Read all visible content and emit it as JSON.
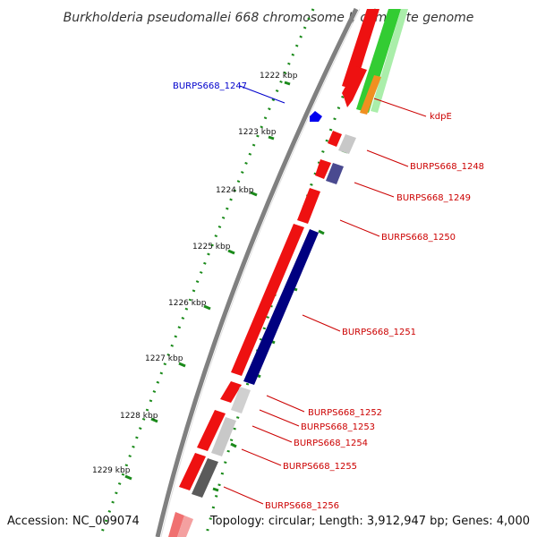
{
  "title": "Burkholderia pseudomallei 668 chromosome I, complete genome",
  "accession": "Accession: NC_009074",
  "topology": "Topology: circular; Length: 3,912,947 bp; Genes: 4,000",
  "colors": {
    "feature_red": "#ee1111",
    "label_red": "#cc0000",
    "label_blue": "#0000cc",
    "navy": "#000080",
    "slate": "#4a4a90",
    "light_gray": "#c8c8c8",
    "dark_gray": "#5a5a5a",
    "green": "#33cc33",
    "orange": "#f09020",
    "tick_green": "#1a8a1a",
    "backbone": "#808080"
  },
  "ticks": [
    {
      "label": "1222 kbp"
    },
    {
      "label": "1223 kbp"
    },
    {
      "label": "1224 kbp"
    },
    {
      "label": "1225 kbp"
    },
    {
      "label": "1226 kbp"
    },
    {
      "label": "1227 kbp"
    },
    {
      "label": "1228 kbp"
    },
    {
      "label": "1229 kbp"
    }
  ],
  "gene_labels": [
    {
      "text": "BURPS668_1247",
      "color": "blue"
    },
    {
      "text": "kdpE",
      "color": "red"
    },
    {
      "text": "BURPS668_1248",
      "color": "red"
    },
    {
      "text": "BURPS668_1249",
      "color": "red"
    },
    {
      "text": "BURPS668_1250",
      "color": "red"
    },
    {
      "text": "BURPS668_1251",
      "color": "red"
    },
    {
      "text": "BURPS668_1252",
      "color": "red"
    },
    {
      "text": "BURPS668_1253",
      "color": "red"
    },
    {
      "text": "BURPS668_1254",
      "color": "red"
    },
    {
      "text": "BURPS668_1255",
      "color": "red"
    },
    {
      "text": "BURPS668_1256",
      "color": "red"
    }
  ]
}
